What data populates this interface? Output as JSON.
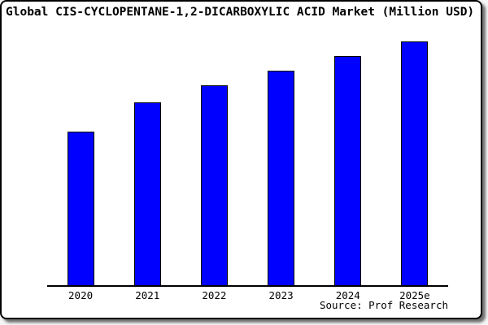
{
  "colors": {
    "bar_fill": "#0000fe",
    "bar_border": "#000000",
    "axis": "#000000",
    "panel_background": "#ffffff",
    "frame_border": "#000000",
    "page_background": "#f6f6f6",
    "text": "#000000"
  },
  "chart_data": {
    "type": "bar",
    "title": "Global CIS-CYCLOPENTANE-1,2-DICARBOXYLIC ACID Market (Million USD)",
    "categories": [
      "2020",
      "2021",
      "2022",
      "2023",
      "2024",
      "2025e"
    ],
    "values": [
      63,
      75,
      82,
      88,
      94,
      100
    ],
    "values_note": "relative scale estimated from bar pixel heights; y-axis has no visible ticks or labels",
    "xlabel": "",
    "ylabel": "",
    "ylim": [
      0,
      107
    ],
    "grid": false,
    "legend": false,
    "source": "Source: Prof Research"
  }
}
